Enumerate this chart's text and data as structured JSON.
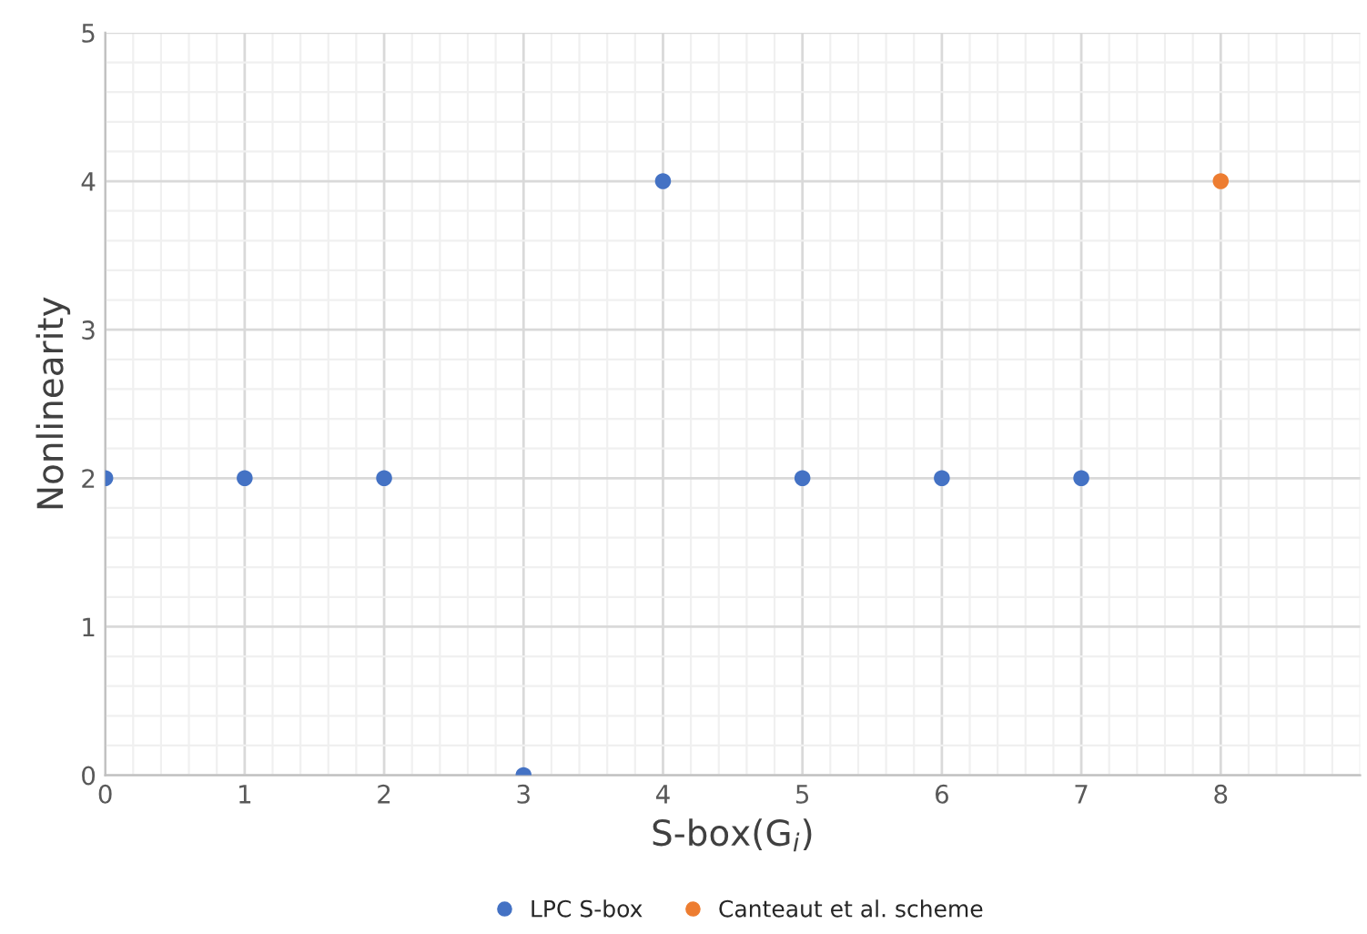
{
  "chart_data": {
    "type": "scatter",
    "xlabel": "S-box(G$_{i}$)",
    "ylabel": "Nonlinearity",
    "series": [
      {
        "name": "LPC S-box",
        "color": "#4472c4",
        "x": [
          0,
          1,
          2,
          3,
          4,
          5,
          6,
          7
        ],
        "values": [
          2,
          2,
          2,
          0,
          4,
          2,
          2,
          2
        ]
      },
      {
        "name": "Canteaut et al. scheme",
        "color": "#ed7d31",
        "x": [
          8
        ],
        "values": [
          4
        ]
      }
    ],
    "xlim": [
      0,
      9
    ],
    "xticks": [
      0,
      1,
      2,
      3,
      4,
      5,
      6,
      7,
      8
    ],
    "ylim": [
      0,
      5
    ],
    "yticks": [
      0,
      1,
      2,
      3,
      4,
      5
    ],
    "grid": true,
    "legend": "bottom",
    "marker": "circle"
  }
}
